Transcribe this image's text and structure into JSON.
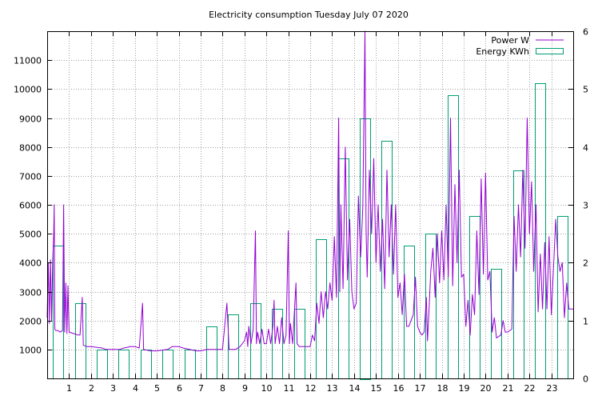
{
  "chart_data": {
    "type": "bar",
    "title": "Electricity consumption Tuesday July 07 2020",
    "xlabel": "",
    "ylabel": "",
    "x_ticks": [
      "1",
      "2",
      "3",
      "4",
      "5",
      "6",
      "7",
      "8",
      "9",
      "10",
      "11",
      "12",
      "13",
      "14",
      "15",
      "16",
      "17",
      "18",
      "19",
      "20",
      "21",
      "22",
      "23"
    ],
    "y_left_ticks": [
      "1000",
      "2000",
      "3000",
      "4000",
      "5000",
      "6000",
      "7000",
      "8000",
      "9000",
      "10000",
      "11000"
    ],
    "y_right_ticks": [
      "0",
      "1",
      "2",
      "3",
      "4",
      "5",
      "6"
    ],
    "xlim": [
      0,
      24
    ],
    "ylim_left": [
      0,
      12000
    ],
    "ylim_right": [
      0,
      6
    ],
    "grid": true,
    "legend_position": "top-right",
    "colors": {
      "power": "#9400d3",
      "energy": "#009e73"
    },
    "series": [
      {
        "name": "Power W",
        "axis": "left",
        "type": "line",
        "points": [
          [
            0.0,
            2100
          ],
          [
            0.05,
            4000
          ],
          [
            0.1,
            1900
          ],
          [
            0.15,
            4100
          ],
          [
            0.2,
            2000
          ],
          [
            0.25,
            4000
          ],
          [
            0.3,
            5000
          ],
          [
            0.32,
            6000
          ],
          [
            0.35,
            1700
          ],
          [
            0.4,
            1650
          ],
          [
            0.5,
            1650
          ],
          [
            0.6,
            1600
          ],
          [
            0.7,
            1650
          ],
          [
            0.75,
            6000
          ],
          [
            0.8,
            1600
          ],
          [
            0.85,
            3300
          ],
          [
            0.9,
            1550
          ],
          [
            0.95,
            3200
          ],
          [
            1.0,
            1600
          ],
          [
            1.2,
            1550
          ],
          [
            1.4,
            1500
          ],
          [
            1.5,
            1500
          ],
          [
            1.6,
            2800
          ],
          [
            1.65,
            1150
          ],
          [
            1.8,
            1100
          ],
          [
            2.0,
            1100
          ],
          [
            2.5,
            1050
          ],
          [
            2.7,
            1000
          ],
          [
            3.0,
            1000
          ],
          [
            3.3,
            1000
          ],
          [
            3.5,
            1050
          ],
          [
            3.8,
            1100
          ],
          [
            4.0,
            1100
          ],
          [
            4.2,
            1050
          ],
          [
            4.35,
            2600
          ],
          [
            4.4,
            1000
          ],
          [
            4.7,
            950
          ],
          [
            5.0,
            950
          ],
          [
            5.5,
            1000
          ],
          [
            5.7,
            1100
          ],
          [
            6.0,
            1100
          ],
          [
            6.2,
            1050
          ],
          [
            6.5,
            1000
          ],
          [
            6.8,
            950
          ],
          [
            7.0,
            950
          ],
          [
            7.3,
            1000
          ],
          [
            7.8,
            1000
          ],
          [
            8.0,
            1000
          ],
          [
            8.2,
            2600
          ],
          [
            8.3,
            1000
          ],
          [
            8.6,
            1000
          ],
          [
            8.8,
            1100
          ],
          [
            9.0,
            1300
          ],
          [
            9.1,
            1600
          ],
          [
            9.15,
            1100
          ],
          [
            9.2,
            1800
          ],
          [
            9.3,
            1200
          ],
          [
            9.4,
            1700
          ],
          [
            9.5,
            5100
          ],
          [
            9.55,
            1200
          ],
          [
            9.6,
            1600
          ],
          [
            9.7,
            1200
          ],
          [
            9.8,
            1700
          ],
          [
            9.9,
            1200
          ],
          [
            10.0,
            1200
          ],
          [
            10.1,
            1700
          ],
          [
            10.2,
            1200
          ],
          [
            10.3,
            1800
          ],
          [
            10.35,
            2700
          ],
          [
            10.4,
            1200
          ],
          [
            10.5,
            1800
          ],
          [
            10.6,
            1200
          ],
          [
            10.7,
            2100
          ],
          [
            10.8,
            1200
          ],
          [
            10.9,
            1500
          ],
          [
            11.0,
            5100
          ],
          [
            11.05,
            1200
          ],
          [
            11.1,
            1900
          ],
          [
            11.2,
            1200
          ],
          [
            11.3,
            2600
          ],
          [
            11.35,
            3300
          ],
          [
            11.4,
            1200
          ],
          [
            11.5,
            1100
          ],
          [
            11.6,
            1100
          ],
          [
            11.8,
            1100
          ],
          [
            12.0,
            1100
          ],
          [
            12.1,
            1500
          ],
          [
            12.2,
            1300
          ],
          [
            12.3,
            2600
          ],
          [
            12.4,
            1900
          ],
          [
            12.5,
            3000
          ],
          [
            12.6,
            2100
          ],
          [
            12.7,
            3000
          ],
          [
            12.8,
            2400
          ],
          [
            12.9,
            3300
          ],
          [
            13.0,
            2700
          ],
          [
            13.1,
            4900
          ],
          [
            13.2,
            2800
          ],
          [
            13.3,
            9000
          ],
          [
            13.35,
            3000
          ],
          [
            13.4,
            6000
          ],
          [
            13.5,
            3100
          ],
          [
            13.6,
            8000
          ],
          [
            13.7,
            3400
          ],
          [
            13.8,
            5500
          ],
          [
            13.9,
            3000
          ],
          [
            14.0,
            2400
          ],
          [
            14.1,
            2600
          ],
          [
            14.2,
            6300
          ],
          [
            14.3,
            4200
          ],
          [
            14.4,
            5900
          ],
          [
            14.5,
            12000
          ],
          [
            14.55,
            5100
          ],
          [
            14.6,
            3500
          ],
          [
            14.7,
            7200
          ],
          [
            14.8,
            5000
          ],
          [
            14.9,
            7600
          ],
          [
            15.0,
            4000
          ],
          [
            15.1,
            6000
          ],
          [
            15.2,
            3700
          ],
          [
            15.3,
            5500
          ],
          [
            15.4,
            3100
          ],
          [
            15.5,
            7200
          ],
          [
            15.6,
            4200
          ],
          [
            15.7,
            6000
          ],
          [
            15.8,
            3600
          ],
          [
            15.9,
            6000
          ],
          [
            16.0,
            2800
          ],
          [
            16.1,
            3300
          ],
          [
            16.2,
            2200
          ],
          [
            16.3,
            3600
          ],
          [
            16.4,
            1800
          ],
          [
            16.5,
            1800
          ],
          [
            16.7,
            2200
          ],
          [
            16.8,
            3500
          ],
          [
            16.9,
            1800
          ],
          [
            17.0,
            1600
          ],
          [
            17.1,
            1500
          ],
          [
            17.2,
            1600
          ],
          [
            17.3,
            2800
          ],
          [
            17.35,
            1300
          ],
          [
            17.4,
            2000
          ],
          [
            17.5,
            3700
          ],
          [
            17.6,
            4500
          ],
          [
            17.7,
            2800
          ],
          [
            17.8,
            5000
          ],
          [
            17.9,
            3300
          ],
          [
            18.0,
            5100
          ],
          [
            18.1,
            3400
          ],
          [
            18.2,
            6000
          ],
          [
            18.3,
            3500
          ],
          [
            18.4,
            9000
          ],
          [
            18.5,
            3200
          ],
          [
            18.6,
            6700
          ],
          [
            18.7,
            4000
          ],
          [
            18.8,
            7200
          ],
          [
            18.9,
            3500
          ],
          [
            19.0,
            3600
          ],
          [
            19.1,
            1800
          ],
          [
            19.2,
            2700
          ],
          [
            19.3,
            1500
          ],
          [
            19.4,
            2900
          ],
          [
            19.5,
            2200
          ],
          [
            19.6,
            5100
          ],
          [
            19.7,
            2900
          ],
          [
            19.8,
            6900
          ],
          [
            19.9,
            3600
          ],
          [
            20.0,
            7100
          ],
          [
            20.1,
            3400
          ],
          [
            20.2,
            3700
          ],
          [
            20.3,
            1600
          ],
          [
            20.4,
            2100
          ],
          [
            20.5,
            1400
          ],
          [
            20.7,
            1500
          ],
          [
            20.8,
            2000
          ],
          [
            20.9,
            1600
          ],
          [
            21.0,
            1600
          ],
          [
            21.2,
            1700
          ],
          [
            21.3,
            5600
          ],
          [
            21.4,
            3700
          ],
          [
            21.5,
            6000
          ],
          [
            21.6,
            4200
          ],
          [
            21.7,
            7200
          ],
          [
            21.8,
            4500
          ],
          [
            21.9,
            9000
          ],
          [
            22.0,
            5000
          ],
          [
            22.1,
            6800
          ],
          [
            22.2,
            3700
          ],
          [
            22.3,
            6000
          ],
          [
            22.4,
            2300
          ],
          [
            22.5,
            4300
          ],
          [
            22.6,
            2400
          ],
          [
            22.7,
            4700
          ],
          [
            22.8,
            2400
          ],
          [
            22.9,
            4900
          ],
          [
            23.0,
            2200
          ],
          [
            23.1,
            3800
          ],
          [
            23.2,
            5500
          ],
          [
            23.3,
            4200
          ],
          [
            23.4,
            3700
          ],
          [
            23.5,
            4000
          ],
          [
            23.6,
            2100
          ],
          [
            23.7,
            3300
          ],
          [
            23.8,
            2400
          ],
          [
            24.0,
            2400
          ]
        ]
      },
      {
        "name": "Energy KWh",
        "axis": "right",
        "type": "bar",
        "categories": [
          "0",
          "1",
          "2",
          "3",
          "4",
          "5",
          "6",
          "7",
          "8",
          "9",
          "10",
          "11",
          "12",
          "13",
          "14",
          "15",
          "16",
          "17",
          "18",
          "19",
          "20",
          "21",
          "22",
          "23"
        ],
        "values": [
          2.3,
          1.3,
          0.5,
          0.5,
          0.5,
          0.5,
          0.5,
          0.9,
          1.1,
          1.3,
          1.2,
          1.2,
          2.4,
          3.8,
          4.5,
          4.1,
          2.3,
          2.5,
          4.9,
          2.8,
          1.9,
          3.6,
          5.1,
          2.8
        ]
      }
    ]
  }
}
